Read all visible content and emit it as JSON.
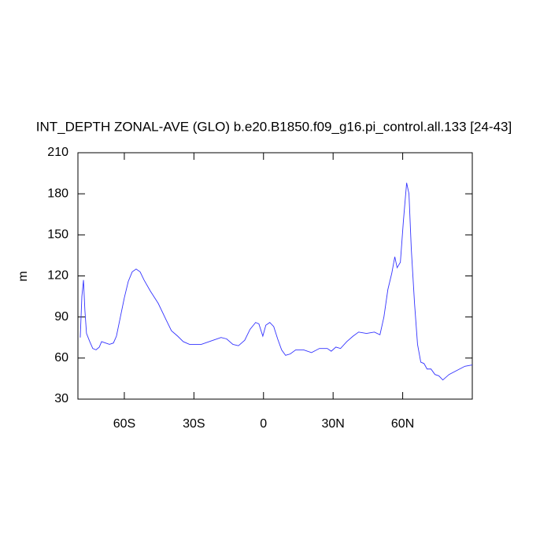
{
  "chart_data": {
    "type": "line",
    "title": "INT_DEPTH ZONAL-AVE (GLO) b.e20.B1850.f09_g16.pi_control.all.133 [24-43]",
    "y_label": "m",
    "xlim": [
      -80,
      90
    ],
    "xticks": [
      {
        "value": -60,
        "label": "60S"
      },
      {
        "value": -30,
        "label": "30S"
      },
      0,
      {
        "value": 30,
        "label": "30N"
      },
      {
        "value": 60,
        "label": "60N"
      }
    ],
    "ylim": [
      30,
      210
    ],
    "yticks": [
      30,
      60,
      90,
      120,
      150,
      180,
      210
    ],
    "grid": false,
    "color": "#3333ff",
    "x": [
      -79.0,
      -78.3,
      -77.6,
      -77.0,
      -76.3,
      -74.9,
      -73.6,
      -72.2,
      -70.8,
      -69.8,
      -68.1,
      -66.4,
      -64.7,
      -63.4,
      -61.7,
      -60.0,
      -58.3,
      -56.6,
      -54.9,
      -53.2,
      -51.5,
      -48.8,
      -45.4,
      -42.0,
      -39.7,
      -37.0,
      -34.6,
      -31.9,
      -26.8,
      -21.7,
      -18.3,
      -15.9,
      -13.2,
      -10.8,
      -8.1,
      -5.8,
      -3.4,
      -2.0,
      -0.3,
      1.0,
      2.7,
      4.4,
      6.1,
      7.8,
      9.5,
      11.5,
      13.9,
      17.3,
      20.7,
      24.1,
      27.5,
      29.2,
      31.2,
      33.2,
      35.9,
      38.6,
      41.0,
      44.4,
      47.8,
      50.2,
      51.9,
      53.6,
      55.3,
      56.6,
      57.6,
      59.0,
      60.3,
      61.7,
      62.7,
      63.7,
      65.1,
      66.4,
      67.8,
      69.2,
      70.5,
      72.2,
      73.9,
      75.6,
      77.3,
      80.0,
      83.4,
      86.8,
      90.0
    ],
    "values": [
      75,
      105,
      117,
      95,
      78,
      72,
      67,
      66,
      68,
      72,
      71,
      70,
      71,
      76,
      90,
      104,
      116,
      123,
      125,
      123,
      117,
      109,
      100,
      88,
      80,
      76,
      72,
      70,
      70,
      73,
      75,
      74,
      70,
      69,
      73,
      81,
      86,
      85,
      76,
      84,
      86,
      83,
      74,
      66,
      62,
      63,
      66,
      66,
      64,
      67,
      67,
      65,
      68,
      67,
      72,
      76,
      79,
      78,
      79,
      77,
      90,
      110,
      122,
      134,
      126,
      130,
      160,
      188,
      180,
      140,
      100,
      70,
      57,
      56,
      52,
      52,
      48,
      47,
      44,
      48,
      51,
      54,
      55
    ]
  }
}
